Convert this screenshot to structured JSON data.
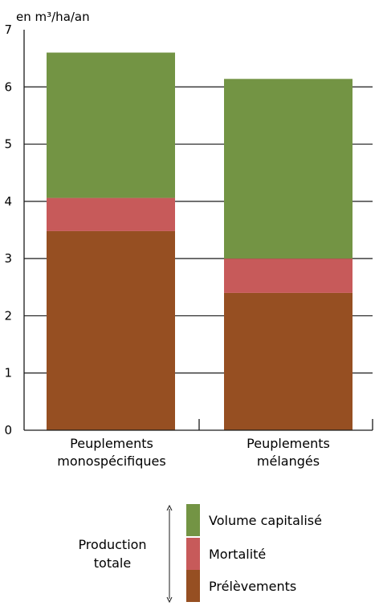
{
  "chart_data": {
    "type": "bar",
    "stacked": true,
    "unit_label": "en m³/ha/an",
    "categories": [
      "Peuplements\nmonospécifiques",
      "Peuplements\nmélangés"
    ],
    "series": [
      {
        "name": "Prélèvements",
        "color": "#964f22",
        "values": [
          3.48,
          2.4
        ]
      },
      {
        "name": "Mortalité",
        "color": "#c75a5a",
        "values": [
          0.58,
          0.6
        ]
      },
      {
        "name": "Volume capitalisé",
        "color": "#739444",
        "values": [
          2.54,
          3.14
        ]
      }
    ],
    "ylim": [
      0,
      7
    ],
    "yticks": [
      0,
      1,
      2,
      3,
      4,
      5,
      6,
      7
    ],
    "grid": true,
    "legend_position": "bottom",
    "legend_group_label": "Production\ntotale"
  }
}
